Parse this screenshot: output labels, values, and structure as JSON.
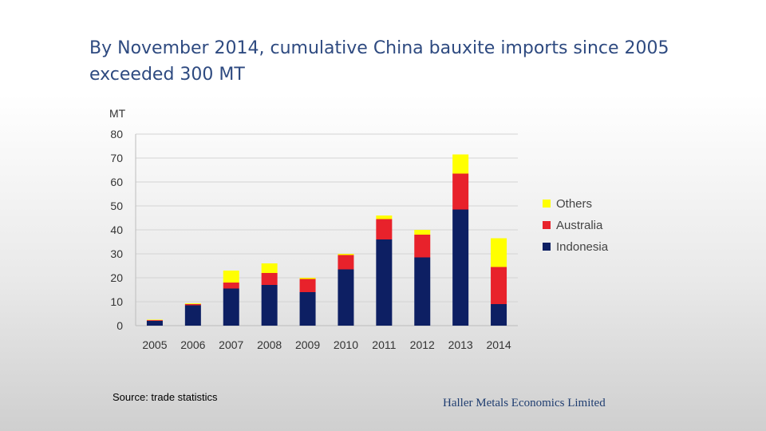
{
  "title_lines": [
    "By November 2014, cumulative China bauxite imports since 2005",
    "exceeded 300 MT"
  ],
  "source": "Source: trade statistics",
  "company": "Haller Metals Economics Limited",
  "chart_data": {
    "type": "bar",
    "stacked": true,
    "title": "",
    "ylabel": "MT",
    "xlabel": "",
    "ylim": [
      0,
      80
    ],
    "yticks": [
      0,
      10,
      20,
      30,
      40,
      50,
      60,
      70,
      80
    ],
    "grid": true,
    "legend_position": "right",
    "categories": [
      "2005",
      "2006",
      "2007",
      "2008",
      "2009",
      "2010",
      "2011",
      "2012",
      "2013",
      "2014"
    ],
    "series": [
      {
        "name": "Indonesia",
        "color": "#0d1f63",
        "values": [
          2,
          8.5,
          15.5,
          17,
          14,
          23.5,
          36,
          28.5,
          48.5,
          9
        ]
      },
      {
        "name": "Australia",
        "color": "#e8222b",
        "values": [
          0.3,
          0.5,
          2.5,
          5,
          5.5,
          6,
          8.5,
          9.5,
          15,
          15.5
        ]
      },
      {
        "name": "Others",
        "color": "#ffff00",
        "values": [
          0.2,
          0.3,
          5,
          4,
          0.5,
          0.5,
          1.5,
          2,
          8,
          12
        ]
      }
    ]
  }
}
